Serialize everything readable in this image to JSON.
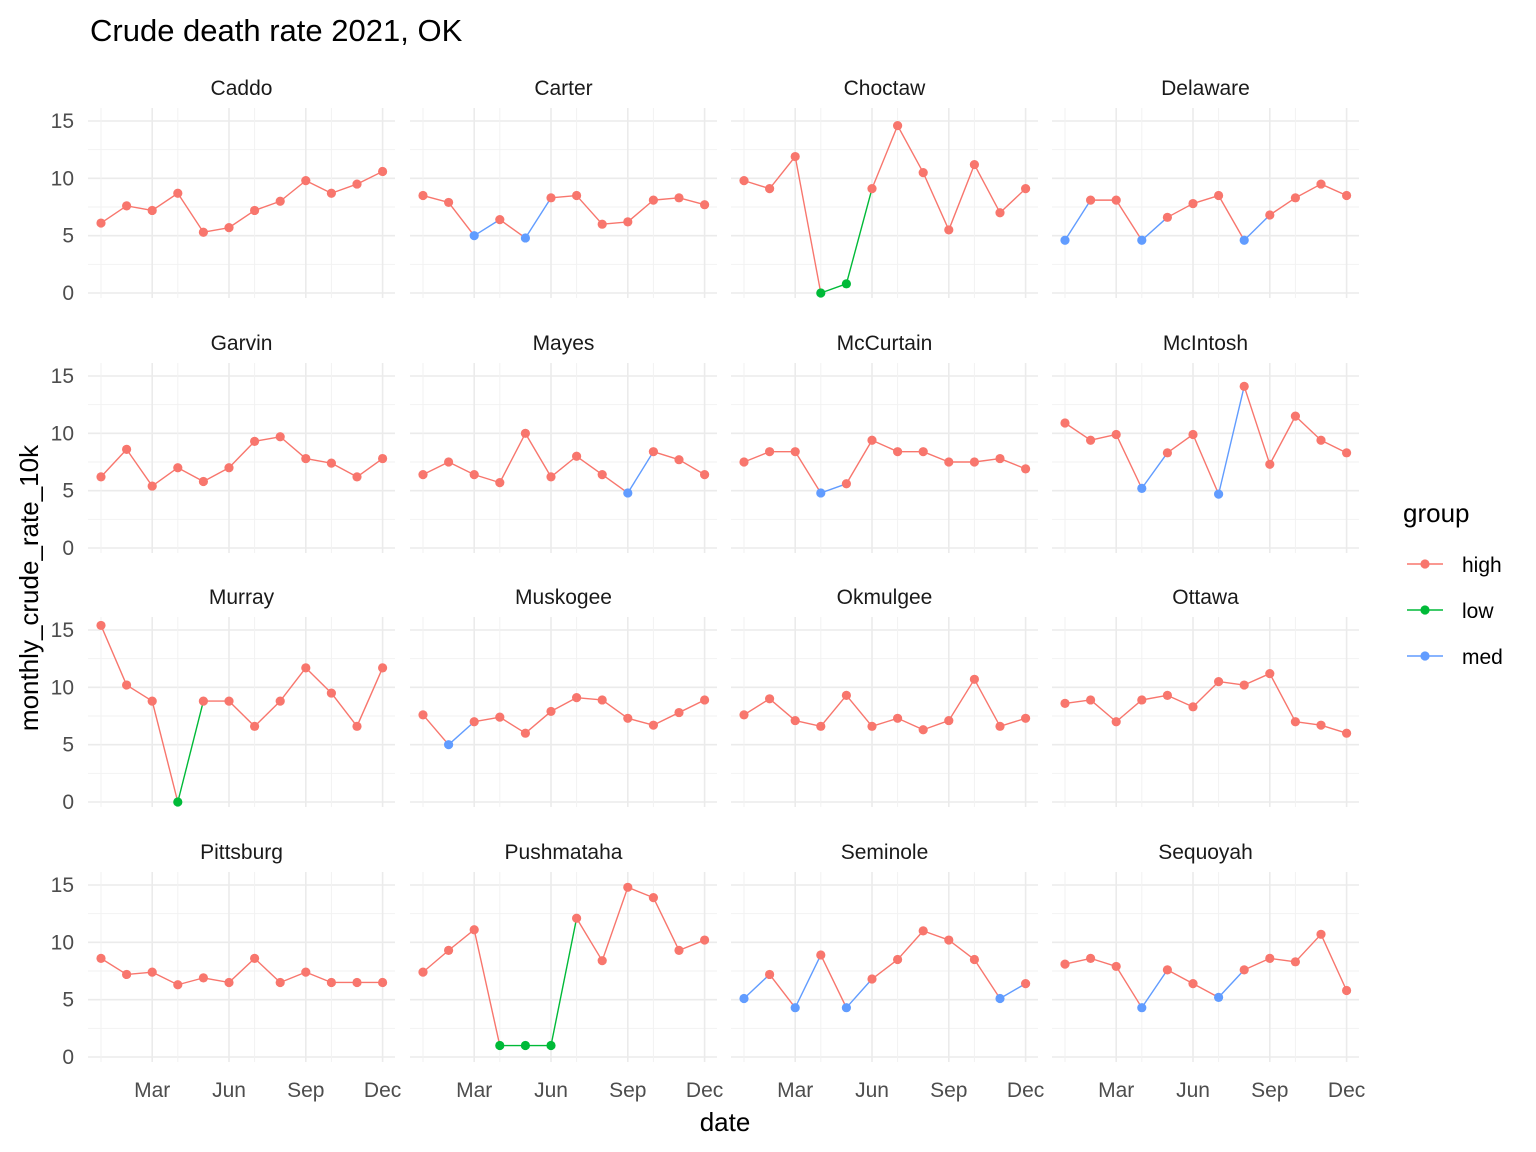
{
  "chart_data": {
    "type": "line",
    "title": "Crude death rate 2021, OK",
    "xlabel": "date",
    "ylabel": "monthly_crude_rate_10k",
    "ylim": [
      0,
      15
    ],
    "y_ticks": [
      "0",
      "5",
      "10",
      "15"
    ],
    "x_tick_labels": [
      "Mar",
      "Jun",
      "Sep",
      "Dec"
    ],
    "months": [
      "2021-01",
      "2021-02",
      "2021-03",
      "2021-04",
      "2021-05",
      "2021-06",
      "2021-07",
      "2021-08",
      "2021-09",
      "2021-10",
      "2021-11",
      "2021-12"
    ],
    "legend": {
      "title": "group",
      "items": [
        {
          "label": "high",
          "color": "#F8766D"
        },
        {
          "label": "low",
          "color": "#00BA38"
        },
        {
          "label": "med",
          "color": "#619CFF"
        }
      ]
    },
    "grid": true,
    "panels": [
      {
        "county": "Caddo",
        "values": [
          6.1,
          7.6,
          7.2,
          8.7,
          5.3,
          5.7,
          7.2,
          8.0,
          9.8,
          8.7,
          9.5,
          10.6
        ],
        "groups": [
          "high",
          "high",
          "high",
          "high",
          "high",
          "high",
          "high",
          "high",
          "high",
          "high",
          "high",
          "high"
        ]
      },
      {
        "county": "Carter",
        "values": [
          8.5,
          7.9,
          5.0,
          6.4,
          4.8,
          8.3,
          8.5,
          6.0,
          6.2,
          8.1,
          8.3,
          7.7
        ],
        "groups": [
          "high",
          "high",
          "med",
          "high",
          "med",
          "high",
          "high",
          "high",
          "high",
          "high",
          "high",
          "high"
        ]
      },
      {
        "county": "Choctaw",
        "values": [
          9.8,
          9.1,
          11.9,
          0.0,
          0.8,
          9.1,
          14.6,
          10.5,
          5.5,
          11.2,
          7.0,
          9.1
        ],
        "groups": [
          "high",
          "high",
          "high",
          "low",
          "low",
          "high",
          "high",
          "high",
          "high",
          "high",
          "high",
          "high"
        ]
      },
      {
        "county": "Delaware",
        "values": [
          4.6,
          8.1,
          8.1,
          4.6,
          6.6,
          7.8,
          8.5,
          4.6,
          6.8,
          8.3,
          9.5,
          8.5
        ],
        "groups": [
          "med",
          "high",
          "high",
          "med",
          "high",
          "high",
          "high",
          "med",
          "high",
          "high",
          "high",
          "high"
        ]
      },
      {
        "county": "Garvin",
        "values": [
          6.2,
          8.6,
          5.4,
          7.0,
          5.8,
          7.0,
          9.3,
          9.7,
          7.8,
          7.4,
          6.2,
          7.8
        ],
        "groups": [
          "high",
          "high",
          "high",
          "high",
          "high",
          "high",
          "high",
          "high",
          "high",
          "high",
          "high",
          "high"
        ]
      },
      {
        "county": "Mayes",
        "values": [
          6.4,
          7.5,
          6.4,
          5.7,
          10.0,
          6.2,
          8.0,
          6.4,
          4.8,
          8.4,
          7.7,
          6.4
        ],
        "groups": [
          "high",
          "high",
          "high",
          "high",
          "high",
          "high",
          "high",
          "high",
          "med",
          "high",
          "high",
          "high"
        ]
      },
      {
        "county": "McCurtain",
        "values": [
          7.5,
          8.4,
          8.4,
          4.8,
          5.6,
          9.4,
          8.4,
          8.4,
          7.5,
          7.5,
          7.8,
          6.9
        ],
        "groups": [
          "high",
          "high",
          "high",
          "med",
          "high",
          "high",
          "high",
          "high",
          "high",
          "high",
          "high",
          "high"
        ]
      },
      {
        "county": "McIntosh",
        "values": [
          10.9,
          9.4,
          9.9,
          5.2,
          8.3,
          9.9,
          4.7,
          14.1,
          7.3,
          11.5,
          9.4,
          8.3
        ],
        "groups": [
          "high",
          "high",
          "high",
          "med",
          "high",
          "high",
          "med",
          "high",
          "high",
          "high",
          "high",
          "high"
        ]
      },
      {
        "county": "Murray",
        "values": [
          15.4,
          10.2,
          8.8,
          0.0,
          8.8,
          8.8,
          6.6,
          8.8,
          11.7,
          9.5,
          6.6,
          11.7
        ],
        "groups": [
          "high",
          "high",
          "high",
          "low",
          "high",
          "high",
          "high",
          "high",
          "high",
          "high",
          "high",
          "high"
        ]
      },
      {
        "county": "Muskogee",
        "values": [
          7.6,
          5.0,
          7.0,
          7.4,
          6.0,
          7.9,
          9.1,
          8.9,
          7.3,
          6.7,
          7.8,
          8.9
        ],
        "groups": [
          "high",
          "med",
          "high",
          "high",
          "high",
          "high",
          "high",
          "high",
          "high",
          "high",
          "high",
          "high"
        ]
      },
      {
        "county": "Okmulgee",
        "values": [
          7.6,
          9.0,
          7.1,
          6.6,
          9.3,
          6.6,
          7.3,
          6.3,
          7.1,
          10.7,
          6.6,
          7.3
        ],
        "groups": [
          "high",
          "high",
          "high",
          "high",
          "high",
          "high",
          "high",
          "high",
          "high",
          "high",
          "high",
          "high"
        ]
      },
      {
        "county": "Ottawa",
        "values": [
          8.6,
          8.9,
          7.0,
          8.9,
          9.3,
          8.3,
          10.5,
          10.2,
          11.2,
          7.0,
          6.7,
          6.0
        ],
        "groups": [
          "high",
          "high",
          "high",
          "high",
          "high",
          "high",
          "high",
          "high",
          "high",
          "high",
          "high",
          "high"
        ]
      },
      {
        "county": "Pittsburg",
        "values": [
          8.6,
          7.2,
          7.4,
          6.3,
          6.9,
          6.5,
          8.6,
          6.5,
          7.4,
          6.5,
          6.5,
          6.5
        ],
        "groups": [
          "high",
          "high",
          "high",
          "high",
          "high",
          "high",
          "high",
          "high",
          "high",
          "high",
          "high",
          "high"
        ]
      },
      {
        "county": "Pushmataha",
        "values": [
          7.4,
          9.3,
          11.1,
          1.0,
          1.0,
          1.0,
          12.1,
          8.4,
          14.8,
          13.9,
          9.3,
          10.2
        ],
        "groups": [
          "high",
          "high",
          "high",
          "low",
          "low",
          "low",
          "high",
          "high",
          "high",
          "high",
          "high",
          "high"
        ]
      },
      {
        "county": "Seminole",
        "values": [
          5.1,
          7.2,
          4.3,
          8.9,
          4.3,
          6.8,
          8.5,
          11.0,
          10.2,
          8.5,
          5.1,
          6.4
        ],
        "groups": [
          "med",
          "high",
          "med",
          "high",
          "med",
          "high",
          "high",
          "high",
          "high",
          "high",
          "med",
          "high"
        ]
      },
      {
        "county": "Sequoyah",
        "values": [
          8.1,
          8.6,
          7.9,
          4.3,
          7.6,
          6.4,
          5.2,
          7.6,
          8.6,
          8.3,
          10.7,
          5.8
        ],
        "groups": [
          "high",
          "high",
          "high",
          "med",
          "high",
          "high",
          "med",
          "high",
          "high",
          "high",
          "high",
          "high"
        ]
      }
    ]
  }
}
